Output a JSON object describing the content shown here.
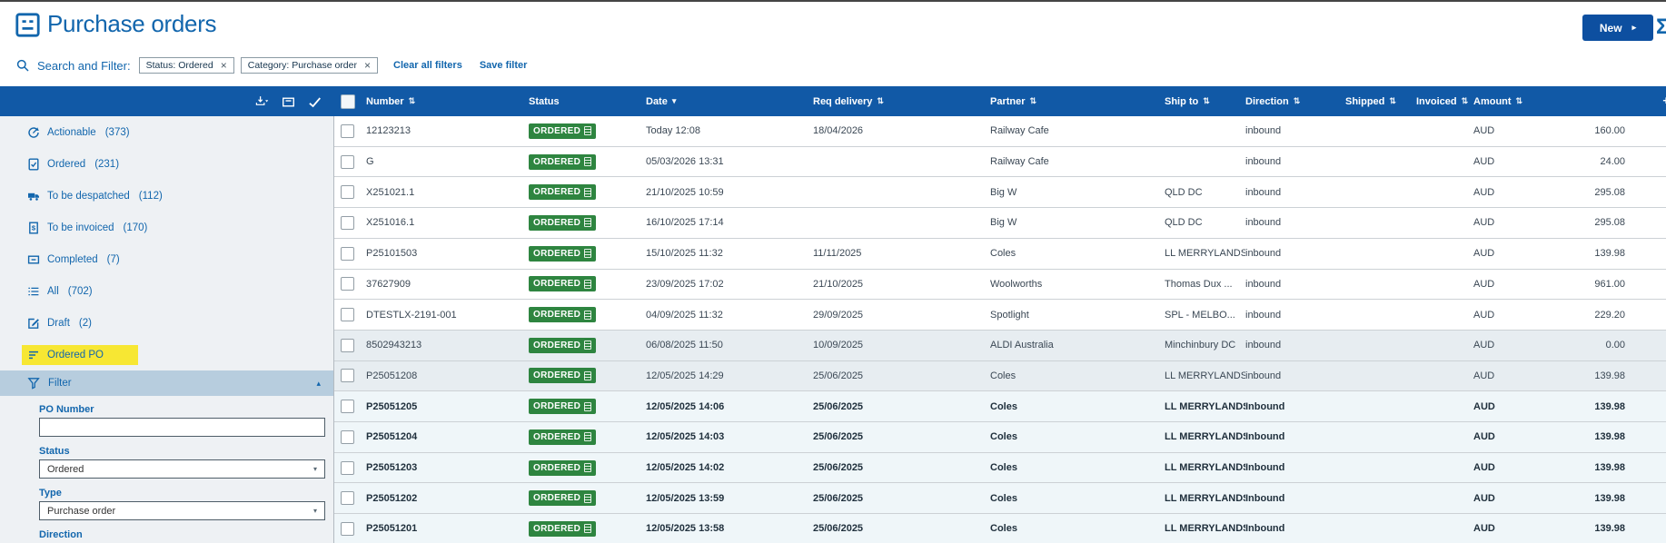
{
  "colors": {
    "brand": "#1266ad",
    "bar_blue": "#1159a6",
    "button_blue": "#0d4fa0",
    "badge_green": "#2e8540",
    "highlight_yellow": "#f7e733",
    "filter_header_bg": "#b7cdde",
    "sidebar_bg": "#eef1f4",
    "selected_row_bg": "#e7edf1",
    "unread_row_bg": "#eff6f9",
    "text_dark": "#3a4754"
  },
  "header": {
    "title": "Purchase orders",
    "new_button_label": "New",
    "new_button_caret": "▸",
    "edge_glyph": "Σ"
  },
  "filter_bar": {
    "label": "Search and Filter:",
    "chips": [
      "Status: Ordered",
      "Category: Purchase order"
    ],
    "chip_close_glyph": "×",
    "clear_all_label": "Clear all filters",
    "save_label": "Save filter"
  },
  "sidebar": {
    "items": [
      {
        "label": "Actionable",
        "count": "(373)",
        "icon": "actionable-icon",
        "highlighted": false
      },
      {
        "label": "Ordered",
        "count": "(231)",
        "icon": "ordered-icon",
        "highlighted": false
      },
      {
        "label": "To be despatched",
        "count": "(112)",
        "icon": "truck-icon",
        "highlighted": false
      },
      {
        "label": "To be invoiced",
        "count": "(170)",
        "icon": "invoice-icon",
        "highlighted": false
      },
      {
        "label": "Completed",
        "count": "(7)",
        "icon": "completed-box-icon",
        "highlighted": false
      },
      {
        "label": "All",
        "count": "(702)",
        "icon": "list-icon",
        "highlighted": false
      },
      {
        "label": "Draft",
        "count": "(2)",
        "icon": "draft-pencil-icon",
        "highlighted": false
      },
      {
        "label": "Ordered PO",
        "count": "",
        "icon": "filter-lines-icon",
        "highlighted": true
      }
    ],
    "filter_panel": {
      "title": "Filter",
      "collapse_glyph": "▴",
      "fields": [
        {
          "label": "PO Number",
          "type": "text",
          "value": ""
        },
        {
          "label": "Status",
          "type": "select",
          "value": "Ordered"
        },
        {
          "label": "Type",
          "type": "select",
          "value": "Purchase order"
        },
        {
          "label": "Direction",
          "type": "text",
          "value": ""
        }
      ]
    }
  },
  "table": {
    "columns": [
      {
        "label": "Number",
        "sort": "updown"
      },
      {
        "label": "Status",
        "sort": "none"
      },
      {
        "label": "Date",
        "sort": "down"
      },
      {
        "label": "Req delivery",
        "sort": "updown"
      },
      {
        "label": "Partner",
        "sort": "updown"
      },
      {
        "label": "Ship to",
        "sort": "updown"
      },
      {
        "label": "Direction",
        "sort": "updown"
      },
      {
        "label": "Shipped",
        "sort": "updown"
      },
      {
        "label": "Invoiced",
        "sort": "updown"
      },
      {
        "label": "Amount",
        "sort": "updown"
      }
    ],
    "rows": [
      {
        "number": "12123213",
        "status": "ORDERED",
        "date": "Today 12:08",
        "req_delivery": "18/04/2026",
        "partner": "Railway Cafe",
        "ship_to": "",
        "direction": "inbound",
        "shipped": "",
        "invoiced": "",
        "currency": "AUD",
        "amount": "160.00",
        "style": "normal"
      },
      {
        "number": "G",
        "status": "ORDERED",
        "date": "05/03/2026 13:31",
        "req_delivery": "",
        "partner": "Railway Cafe",
        "ship_to": "",
        "direction": "inbound",
        "shipped": "",
        "invoiced": "",
        "currency": "AUD",
        "amount": "24.00",
        "style": "normal"
      },
      {
        "number": "X251021.1",
        "status": "ORDERED",
        "date": "21/10/2025 10:59",
        "req_delivery": "",
        "partner": "Big W",
        "ship_to": "QLD DC",
        "direction": "inbound",
        "shipped": "",
        "invoiced": "",
        "currency": "AUD",
        "amount": "295.08",
        "style": "normal"
      },
      {
        "number": "X251016.1",
        "status": "ORDERED",
        "date": "16/10/2025 17:14",
        "req_delivery": "",
        "partner": "Big W",
        "ship_to": "QLD DC",
        "direction": "inbound",
        "shipped": "",
        "invoiced": "",
        "currency": "AUD",
        "amount": "295.08",
        "style": "normal"
      },
      {
        "number": "P25101503",
        "status": "ORDERED",
        "date": "15/10/2025 11:32",
        "req_delivery": "11/11/2025",
        "partner": "Coles",
        "ship_to": "LL MERRYLANDS",
        "direction": "inbound",
        "shipped": "",
        "invoiced": "",
        "currency": "AUD",
        "amount": "139.98",
        "style": "normal"
      },
      {
        "number": "37627909",
        "status": "ORDERED",
        "date": "23/09/2025 17:02",
        "req_delivery": "21/10/2025",
        "partner": "Woolworths",
        "ship_to": "Thomas Dux ...",
        "direction": "inbound",
        "shipped": "",
        "invoiced": "",
        "currency": "AUD",
        "amount": "961.00",
        "style": "normal"
      },
      {
        "number": "DTESTLX-2191-001",
        "status": "ORDERED",
        "date": "04/09/2025 11:32",
        "req_delivery": "29/09/2025",
        "partner": "Spotlight",
        "ship_to": "SPL - MELBO...",
        "direction": "inbound",
        "shipped": "",
        "invoiced": "",
        "currency": "AUD",
        "amount": "229.20",
        "style": "normal"
      },
      {
        "number": "8502943213",
        "status": "ORDERED",
        "date": "06/08/2025 11:50",
        "req_delivery": "10/09/2025",
        "partner": "ALDI Australia",
        "ship_to": "Minchinbury DC",
        "direction": "inbound",
        "shipped": "",
        "invoiced": "",
        "currency": "AUD",
        "amount": "0.00",
        "style": "selected"
      },
      {
        "number": "P25051208",
        "status": "ORDERED",
        "date": "12/05/2025 14:29",
        "req_delivery": "25/06/2025",
        "partner": "Coles",
        "ship_to": "LL MERRYLANDS",
        "direction": "inbound",
        "shipped": "",
        "invoiced": "",
        "currency": "AUD",
        "amount": "139.98",
        "style": "selected"
      },
      {
        "number": "P25051205",
        "status": "ORDERED",
        "date": "12/05/2025 14:06",
        "req_delivery": "25/06/2025",
        "partner": "Coles",
        "ship_to": "LL MERRYLANDS",
        "direction": "Inbound",
        "shipped": "",
        "invoiced": "",
        "currency": "AUD",
        "amount": "139.98",
        "style": "unread"
      },
      {
        "number": "P25051204",
        "status": "ORDERED",
        "date": "12/05/2025 14:03",
        "req_delivery": "25/06/2025",
        "partner": "Coles",
        "ship_to": "LL MERRYLANDS",
        "direction": "Inbound",
        "shipped": "",
        "invoiced": "",
        "currency": "AUD",
        "amount": "139.98",
        "style": "unread"
      },
      {
        "number": "P25051203",
        "status": "ORDERED",
        "date": "12/05/2025 14:02",
        "req_delivery": "25/06/2025",
        "partner": "Coles",
        "ship_to": "LL MERRYLANDS",
        "direction": "Inbound",
        "shipped": "",
        "invoiced": "",
        "currency": "AUD",
        "amount": "139.98",
        "style": "unread"
      },
      {
        "number": "P25051202",
        "status": "ORDERED",
        "date": "12/05/2025 13:59",
        "req_delivery": "25/06/2025",
        "partner": "Coles",
        "ship_to": "LL MERRYLANDS",
        "direction": "Inbound",
        "shipped": "",
        "invoiced": "",
        "currency": "AUD",
        "amount": "139.98",
        "style": "unread"
      },
      {
        "number": "P25051201",
        "status": "ORDERED",
        "date": "12/05/2025 13:58",
        "req_delivery": "25/06/2025",
        "partner": "Coles",
        "ship_to": "LL MERRYLANDS",
        "direction": "Inbound",
        "shipped": "",
        "invoiced": "",
        "currency": "AUD",
        "amount": "139.98",
        "style": "unread"
      }
    ]
  }
}
